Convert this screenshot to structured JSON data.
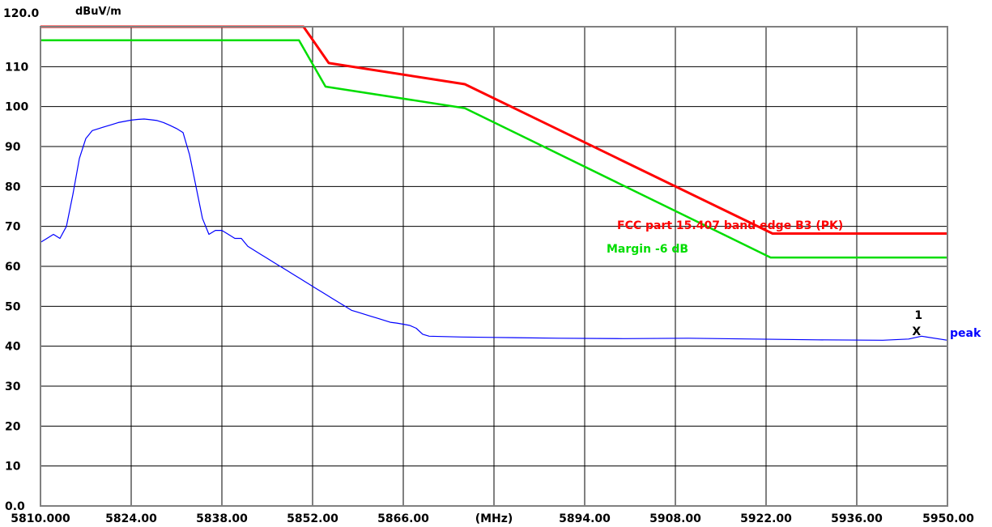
{
  "chart_data": {
    "type": "line",
    "ylabel": "dBuV/m",
    "xunit_label": "(MHz)",
    "xlim": [
      5810,
      5950
    ],
    "ylim": [
      0,
      120
    ],
    "grid": true,
    "x_ticks": [
      5810,
      5824,
      5838,
      5852,
      5866,
      5880,
      5894,
      5908,
      5922,
      5936,
      5950
    ],
    "x_tick_labels": [
      "5810.000",
      "5824.00",
      "5838.00",
      "5852.00",
      "5866.00",
      "(MHz)",
      "5894.00",
      "5908.00",
      "5922.00",
      "5936.00",
      "5950.00"
    ],
    "y_ticks": [
      0,
      10,
      20,
      30,
      40,
      50,
      60,
      70,
      80,
      90,
      100,
      110,
      120
    ],
    "y_tick_labels": [
      "0.0",
      "10",
      "20",
      "30",
      "40",
      "50",
      "60",
      "70",
      "80",
      "90",
      "100",
      "110",
      "120.0"
    ],
    "series": [
      {
        "name": "FCC part 15.407 band edge B3 (PK)",
        "color": "#ff0000",
        "points": [
          [
            5810,
            120
          ],
          [
            5850.6,
            120
          ],
          [
            5854.5,
            110.9
          ],
          [
            5875.5,
            105.6
          ],
          [
            5923,
            68.2
          ],
          [
            5950,
            68.2
          ]
        ]
      },
      {
        "name": "Margin -6 dB",
        "color": "#00dd00",
        "points": [
          [
            5810,
            116.6
          ],
          [
            5849.9,
            116.6
          ],
          [
            5854,
            105
          ],
          [
            5875.5,
            99.6
          ],
          [
            5922.7,
            62.2
          ],
          [
            5950,
            62.2
          ]
        ]
      },
      {
        "name": "peak",
        "color": "#0000ff",
        "points": [
          [
            5810,
            66
          ],
          [
            5811,
            67
          ],
          [
            5812,
            68
          ],
          [
            5813,
            67
          ],
          [
            5814,
            70
          ],
          [
            5815,
            78
          ],
          [
            5816,
            87
          ],
          [
            5817,
            92
          ],
          [
            5818,
            94
          ],
          [
            5819,
            94.5
          ],
          [
            5820,
            95
          ],
          [
            5821,
            95.5
          ],
          [
            5822,
            96
          ],
          [
            5823,
            96.3
          ],
          [
            5824,
            96.6
          ],
          [
            5825,
            96.8
          ],
          [
            5826,
            96.9
          ],
          [
            5827,
            96.7
          ],
          [
            5828,
            96.5
          ],
          [
            5829,
            96
          ],
          [
            5830,
            95.3
          ],
          [
            5831,
            94.5
          ],
          [
            5832,
            93.5
          ],
          [
            5833,
            88
          ],
          [
            5834,
            80
          ],
          [
            5835,
            72
          ],
          [
            5836,
            68
          ],
          [
            5837,
            69
          ],
          [
            5838,
            69
          ],
          [
            5839,
            68
          ],
          [
            5840,
            67
          ],
          [
            5841,
            67
          ],
          [
            5842,
            65
          ],
          [
            5843,
            64
          ],
          [
            5844,
            63
          ],
          [
            5845,
            62
          ],
          [
            5846,
            61
          ],
          [
            5847,
            60
          ],
          [
            5848,
            59
          ],
          [
            5849,
            58
          ],
          [
            5850,
            57
          ],
          [
            5851,
            56
          ],
          [
            5852,
            55
          ],
          [
            5853,
            54
          ],
          [
            5854,
            53
          ],
          [
            5855,
            52
          ],
          [
            5856,
            51
          ],
          [
            5857,
            50
          ],
          [
            5858,
            49
          ],
          [
            5859,
            48.5
          ],
          [
            5860,
            48
          ],
          [
            5861,
            47.5
          ],
          [
            5862,
            47
          ],
          [
            5863,
            46.5
          ],
          [
            5864,
            46
          ],
          [
            5865,
            45.8
          ],
          [
            5866,
            45.5
          ],
          [
            5867,
            45.2
          ],
          [
            5868,
            44.5
          ],
          [
            5869,
            43
          ],
          [
            5870,
            42.5
          ],
          [
            5875,
            42.3
          ],
          [
            5880,
            42.2
          ],
          [
            5890,
            42
          ],
          [
            5900,
            41.9
          ],
          [
            5910,
            42
          ],
          [
            5920,
            41.8
          ],
          [
            5930,
            41.6
          ],
          [
            5940,
            41.5
          ],
          [
            5944,
            41.8
          ],
          [
            5946,
            42.5
          ],
          [
            5950,
            41.5
          ]
        ]
      }
    ],
    "series_labels": [
      "FCC part 15.407 band edge B3 (PK)",
      "Margin -6 dB",
      "peak"
    ],
    "marker": {
      "label": "1",
      "symbol": "X",
      "x": 5945.3,
      "y": 44
    }
  }
}
